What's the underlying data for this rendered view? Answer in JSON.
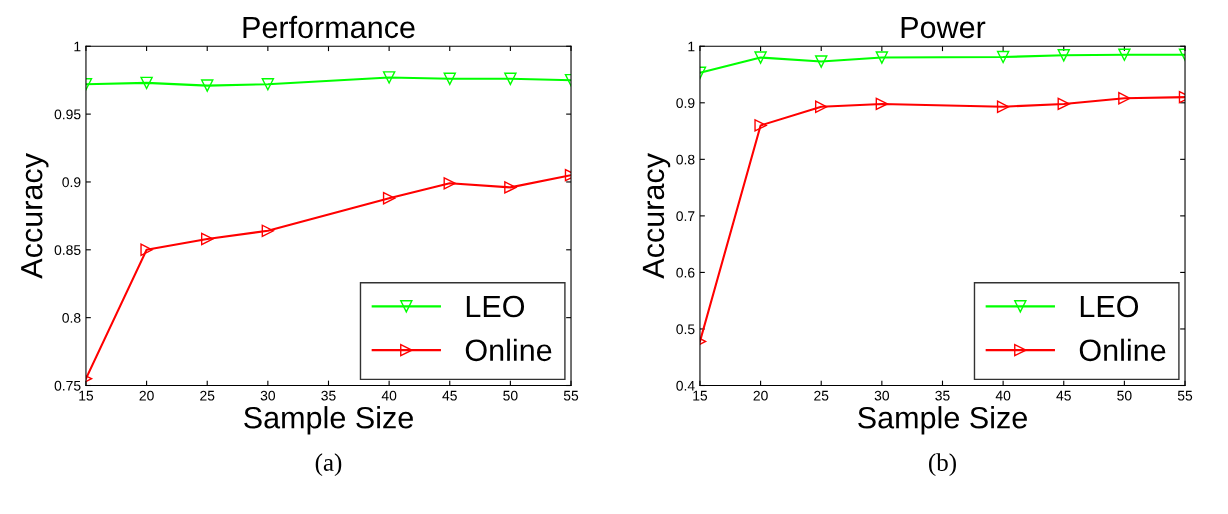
{
  "chart_data": [
    {
      "type": "line",
      "title": "Performance",
      "xlabel": "Sample Size",
      "ylabel": "Accuracy",
      "x": [
        15,
        20,
        25,
        30,
        40,
        45,
        50,
        55
      ],
      "xlim": [
        15,
        55
      ],
      "xticks": [
        15,
        20,
        25,
        30,
        35,
        40,
        45,
        50,
        55
      ],
      "ylim": [
        0.75,
        1
      ],
      "yticks": [
        0.75,
        0.8,
        0.85,
        0.9,
        0.95,
        1
      ],
      "legend": "bottom right",
      "grid": false,
      "line_style": "solid",
      "annotations": [
        "(a)"
      ],
      "series": [
        {
          "name": "LEO",
          "color": "#00ff00",
          "marker": "triangle_down",
          "values": [
            0.972,
            0.973,
            0.971,
            0.972,
            0.977,
            0.976,
            0.976,
            0.975
          ]
        },
        {
          "name": "Online",
          "color": "#ff0000",
          "marker": "triangle_right",
          "values": [
            0.755,
            0.85,
            0.858,
            0.864,
            0.888,
            0.899,
            0.896,
            0.905
          ]
        }
      ]
    },
    {
      "type": "line",
      "title": "Power",
      "xlabel": "Sample Size",
      "ylabel": "Accuracy",
      "x": [
        15,
        20,
        25,
        30,
        40,
        45,
        50,
        55
      ],
      "xlim": [
        15,
        55
      ],
      "xticks": [
        15,
        20,
        25,
        30,
        35,
        40,
        45,
        50,
        55
      ],
      "ylim": [
        0.4,
        1
      ],
      "yticks": [
        0.4,
        0.5,
        0.6,
        0.7,
        0.8,
        0.9,
        1
      ],
      "legend": "bottom right",
      "grid": false,
      "line_style": "solid",
      "annotations": [
        "(b)"
      ],
      "series": [
        {
          "name": "LEO",
          "color": "#00ff00",
          "marker": "triangle_down",
          "values": [
            0.953,
            0.98,
            0.973,
            0.98,
            0.981,
            0.984,
            0.985,
            0.985
          ]
        },
        {
          "name": "Online",
          "color": "#ff0000",
          "marker": "triangle_right",
          "values": [
            0.478,
            0.86,
            0.893,
            0.898,
            0.893,
            0.898,
            0.908,
            0.91
          ]
        }
      ]
    }
  ]
}
